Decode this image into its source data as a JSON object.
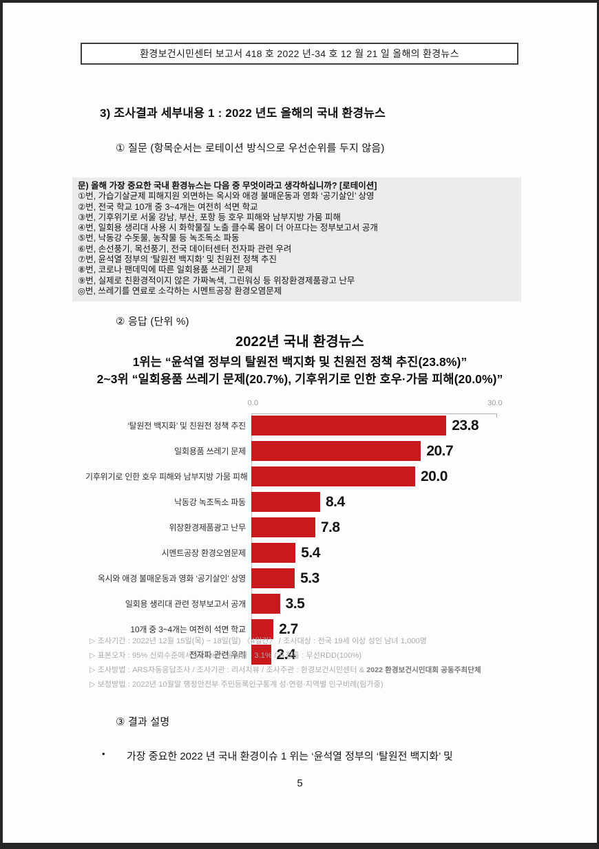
{
  "header": {
    "title": "환경보건시민센터 보고서 418 호 2022 년-34 호 12 월 21 일 올해의 환경뉴스"
  },
  "section": {
    "title": "3)   조사결과 세부내용 1 : 2022 년도 올해의 국내 환경뉴스"
  },
  "question": {
    "label": "①   질문 (항목순서는 로테이션 방식으로 우선순위를 두지 않음)",
    "box_title": "문) 올해 가장 중요한 국내 환경뉴스는 다음 중 무엇이라고 생각하십니까? [로테이션]",
    "items": [
      "①번, 가습기살균제 피해지원 외면하는 옥시와 애경 불매운동과 영화 ‘공기살인’ 상영",
      "②번, 전국 학교 10개 중 3~4개는 여전히 석면 학교",
      "③번, 기후위기로 서울 강남, 부산, 포항 등 호우 피해와 남부지방 가뭄 피해",
      "④번, 일회용 생리대 사용 시 화학물질 노출 클수록 몸이 더 아프다는 정부보고서 공개",
      "⑤번, 낙동강 수돗물, 농작물 등 녹조독소 파동",
      "⑥번, 손선풍기, 목선풍기, 전국 데이터센터 전자파 관련 우려",
      "⑦번, 윤석열 정부의 ‘탈원전 백지화’ 및 친원전 정책 추진",
      "⑧번, 코로나 팬데믹에 따른 일회용품 쓰레기 문제",
      "⑨번, 실제로 친환경적이지 않은 가짜녹색, 그린워싱 등 위장환경제품광고 난무",
      "◎번, 쓰레기를 연료로 소각하는 시멘트공장 환경오염문제"
    ]
  },
  "response": {
    "label": "②   응답 (단위 %)"
  },
  "chart_data": {
    "type": "bar",
    "orientation": "horizontal",
    "title": "2022년 국내 환경뉴스",
    "subtitle_lines": [
      "1위는 “윤석열 정부의 탈원전 백지화 및 친원전 정책 추진(23.8%)”",
      "2~3위 “일회용품 쓰레기 문제(20.7%), 기후위기로 인한 호우·가뭄 피해(20.0%)”"
    ],
    "categories": [
      "‘탈원전 백지화’ 및 친원전 정책 추진",
      "일회용품 쓰레기 문제",
      "기후위기로 인한 호우 피해와 남부지방 가뭄 피해",
      "낙동강 녹조독소 파동",
      "위장환경제품광고 난무",
      "시멘트공장 환경오염문제",
      "옥시와 애경 불매운동과 영화 ‘공기살인’ 상영",
      "일회용 생리대 관련 정부보고서 공개",
      "10개 중 3~4개는 여전히 석면 학교",
      "전자파 관련 우려"
    ],
    "values": [
      23.8,
      20.7,
      20.0,
      8.4,
      7.8,
      5.4,
      5.3,
      3.5,
      2.7,
      2.4
    ],
    "value_labels": [
      "23.8",
      "20.7",
      "20.0",
      "8.4",
      "7.8",
      "5.4",
      "5.3",
      "3.5",
      "2.7",
      "2.4"
    ],
    "xlim": [
      0,
      30
    ],
    "axis_ticks": [
      "0.0",
      "30.0"
    ],
    "bar_color": "#c8191d",
    "legend": null,
    "grid": false,
    "unit": "%"
  },
  "notes": [
    {
      "text": "▷ 조사기간 : 2022년 12월 15일(목) ~ 18일(일) 〈4일간〉 / 조사대상 : 전국 19세 이상 성인 남녀 1,000명"
    },
    {
      "text": "▷ 표본오차 : 95% 신뢰수준에서 ±3.1%p / 응답률 : 3.1% / 표집틀 : 무선RDD(100%)"
    },
    {
      "text": "▷ 조사방법 : ARS자동응답조사 / 조사기관 : 리서치뷰 / 조사주관 : 환경보건시민센터 &  ",
      "bold": "2022 환경보건시민대회 공동주최단체"
    },
    {
      "text": "▷ 보정방법 : 2022년 10월말 행정안전부 주민등록인구통계 성·연령·지역별 인구비례(림가중)"
    }
  ],
  "result": {
    "label": "③   결과 설명",
    "bullet_marker": "•",
    "bullet_text": "가장 중요한 2022 년 국내 환경이슈 1 위는 ‘윤석열 정부의 ‘탈원전 백지화’ 및"
  },
  "footer": {
    "page_number": "5"
  }
}
